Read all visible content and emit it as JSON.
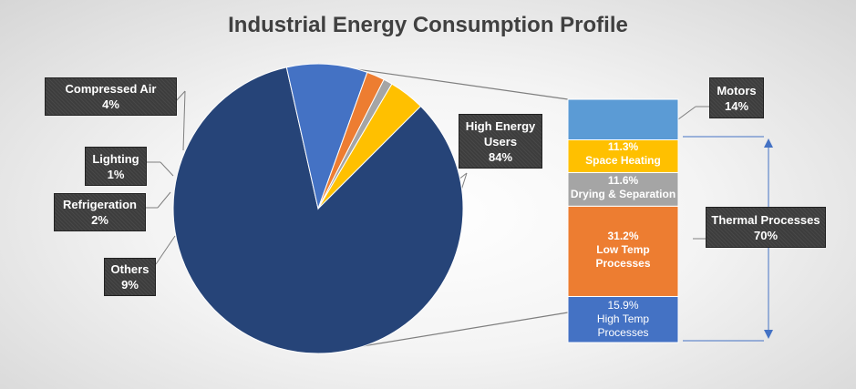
{
  "chart_data": [
    {
      "type": "pie",
      "title": "Industrial Energy Consumption Profile",
      "slices": [
        {
          "name": "High Energy Users",
          "value": 84,
          "label": "84%",
          "color": "#264478"
        },
        {
          "name": "Others",
          "value": 9,
          "label": "9%",
          "color": "#4472C4"
        },
        {
          "name": "Refrigeration",
          "value": 2,
          "label": "2%",
          "color": "#ED7D31"
        },
        {
          "name": "Lighting",
          "value": 1,
          "label": "1%",
          "color": "#A5A5A5"
        },
        {
          "name": "Compressed Air",
          "value": 4,
          "label": "4%",
          "color": "#FFC000"
        }
      ]
    },
    {
      "type": "bar",
      "stacked": true,
      "segments": [
        {
          "name": "High Temp Processes",
          "lines": [
            "15.9%",
            "High Temp",
            "Processes"
          ],
          "value": 15.9,
          "color": "#4472C4"
        },
        {
          "name": "Low Temp Processes",
          "lines": [
            "31.2%",
            "Low Temp",
            "Processes"
          ],
          "value": 31.2,
          "color": "#ED7D31"
        },
        {
          "name": "Drying & Separation",
          "lines": [
            "11.6%",
            "Drying & Separation"
          ],
          "value": 11.6,
          "color": "#A5A5A5"
        },
        {
          "name": "Space Heating",
          "lines": [
            "11.3%",
            "Space Heating"
          ],
          "value": 11.3,
          "color": "#FFC000"
        },
        {
          "name": "Motors",
          "value": 14,
          "color": "#5B9BD5"
        }
      ],
      "callouts": {
        "motors": {
          "name": "Motors",
          "value": "14%"
        },
        "thermal": {
          "name": "Thermal Processes",
          "value": "70%"
        }
      }
    }
  ],
  "callouts": {
    "high_energy": [
      "High Energy",
      "Users",
      "84%"
    ],
    "compressed_air": [
      "Compressed Air",
      "4%"
    ],
    "lighting": [
      "Lighting",
      "1%"
    ],
    "refrigeration": [
      "Refrigeration",
      "2%"
    ],
    "others": [
      "Others",
      "9%"
    ]
  }
}
